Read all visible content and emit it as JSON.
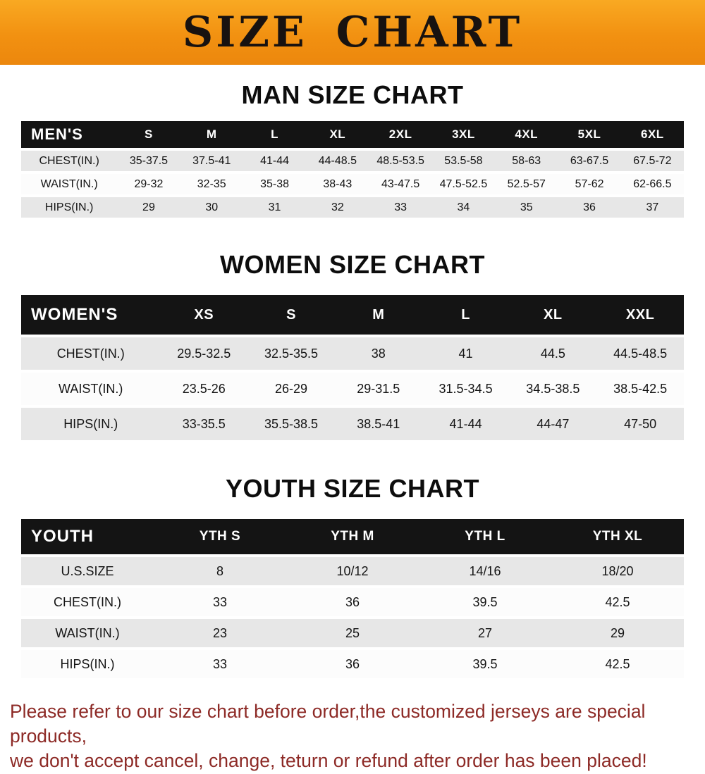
{
  "banner": {
    "title": "SIZE CHART"
  },
  "colors": {
    "banner_orange": "#f29111",
    "table_header_black": "#141414",
    "row_gray": "#e7e7e7",
    "note_red": "#8d2a26"
  },
  "sections": [
    {
      "heading": "MAN SIZE CHART",
      "table": {
        "header": [
          "MEN'S",
          "S",
          "M",
          "L",
          "XL",
          "2XL",
          "3XL",
          "4XL",
          "5XL",
          "6XL"
        ],
        "rows": [
          [
            "CHEST(IN.)",
            "35-37.5",
            "37.5-41",
            "41-44",
            "44-48.5",
            "48.5-53.5",
            "53.5-58",
            "58-63",
            "63-67.5",
            "67.5-72"
          ],
          [
            "WAIST(IN.)",
            "29-32",
            "32-35",
            "35-38",
            "38-43",
            "43-47.5",
            "47.5-52.5",
            "52.5-57",
            "57-62",
            "62-66.5"
          ],
          [
            "HIPS(IN.)",
            "29",
            "30",
            "31",
            "32",
            "33",
            "34",
            "35",
            "36",
            "37"
          ]
        ]
      }
    },
    {
      "heading": "WOMEN SIZE CHART",
      "table": {
        "header": [
          "WOMEN'S",
          "XS",
          "S",
          "M",
          "L",
          "XL",
          "XXL"
        ],
        "rows": [
          [
            "CHEST(IN.)",
            "29.5-32.5",
            "32.5-35.5",
            "38",
            "41",
            "44.5",
            "44.5-48.5"
          ],
          [
            "WAIST(IN.)",
            "23.5-26",
            "26-29",
            "29-31.5",
            "31.5-34.5",
            "34.5-38.5",
            "38.5-42.5"
          ],
          [
            "HIPS(IN.)",
            "33-35.5",
            "35.5-38.5",
            "38.5-41",
            "41-44",
            "44-47",
            "47-50"
          ]
        ]
      }
    },
    {
      "heading": "YOUTH SIZE CHART",
      "table": {
        "header": [
          "YOUTH",
          "YTH S",
          "YTH M",
          "YTH L",
          "YTH XL"
        ],
        "rows": [
          [
            "U.S.SIZE",
            "8",
            "10/12",
            "14/16",
            "18/20"
          ],
          [
            "CHEST(IN.)",
            "33",
            "36",
            "39.5",
            "42.5"
          ],
          [
            "WAIST(IN.)",
            "23",
            "25",
            "27",
            "29"
          ],
          [
            "HIPS(IN.)",
            "33",
            "36",
            "39.5",
            "42.5"
          ]
        ]
      }
    }
  ],
  "footer_note": {
    "line1": "Please refer to our size chart before order,the customized jerseys are special products,",
    "line2": "we don't accept cancel, change, teturn or refund after order has been placed!"
  }
}
